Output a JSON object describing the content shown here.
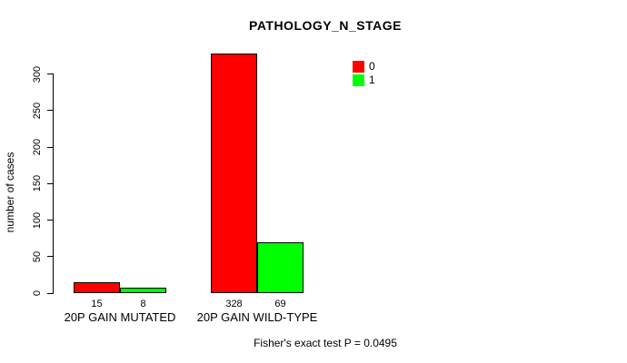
{
  "chart_data": {
    "type": "bar",
    "title": "PATHOLOGY_N_STAGE",
    "xlabel": "",
    "ylabel": "number of cases",
    "categories": [
      "20P GAIN MUTATED",
      "20P GAIN WILD-TYPE"
    ],
    "series": [
      {
        "name": "0",
        "color": "#ff0000",
        "values": [
          15,
          328
        ]
      },
      {
        "name": "1",
        "color": "#00ff00",
        "values": [
          8,
          69
        ]
      }
    ],
    "bar_value_labels": [
      [
        "15",
        "328"
      ],
      [
        "8",
        "69"
      ]
    ],
    "yticks": [
      0,
      50,
      100,
      150,
      200,
      250,
      300
    ],
    "ylim": [
      0,
      330
    ],
    "grid": false,
    "legend_position": "top-right",
    "legend_entries": [
      {
        "label": "0",
        "color": "#ff0000"
      },
      {
        "label": "1",
        "color": "#00ff00"
      }
    ],
    "bar_border_color": "#000000",
    "axis_color": "#000000"
  },
  "footer": {
    "text": "Fisher's exact test P = 0.0495"
  },
  "colors": {
    "background": "#ffffff",
    "text": "#000000"
  }
}
